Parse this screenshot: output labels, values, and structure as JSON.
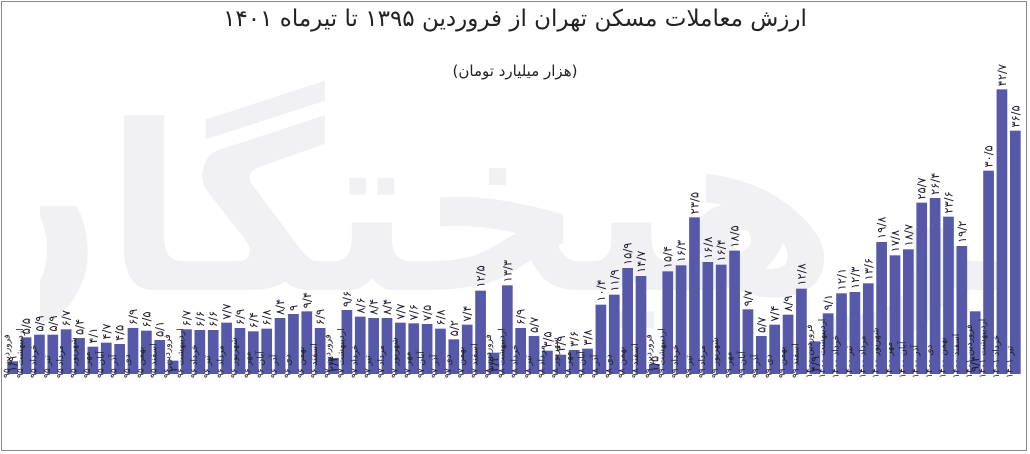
{
  "chart_data": {
    "type": "bar",
    "title": "ارزش معاملات مسکن تهران از فروردین ۱۳۹۵ تا تیرماه ۱۴۰۱",
    "subtitle": "(هزار میلیارد تومان)",
    "xlabel": "",
    "ylabel": "",
    "ylim": [
      0,
      45
    ],
    "grid": false,
    "legend": "none",
    "bar_color": "#5559a8",
    "categories": [
      "فروردین ۹۵",
      "اردیبهشت ۹۵",
      "خرداد ۹۵",
      "تیر ۹۵",
      "مرداد ۹۵",
      "شهریور ۹۵",
      "مهر ۹۵",
      "آبان ۹۵",
      "آذر ۹۵",
      "دی ۹۵",
      "بهمن ۹۵",
      "اسفند ۹۵",
      "فروردین ۹۶",
      "اردیبهشت ۹۶",
      "خرداد ۹۶",
      "تیر ۹۶",
      "مرداد ۹۶",
      "شهریور ۹۶",
      "مهر ۹۶",
      "آبان ۹۶",
      "آذر ۹۶",
      "دی ۹۶",
      "بهمن ۹۶",
      "اسفند ۹۶",
      "فروردین ۹۷",
      "اردیبهشت ۹۷",
      "خرداد ۹۷",
      "تیر ۹۷",
      "مرداد ۹۷",
      "شهریور ۹۷",
      "مهر ۹۷",
      "آبان ۹۷",
      "آذر ۹۷",
      "دی ۹۷",
      "بهمن ۹۷",
      "اسفند ۹۷",
      "فروردین ۹۸",
      "اردیبهشت ۹۸",
      "خرداد ۹۸",
      "تیر ۹۸",
      "مرداد ۹۸",
      "شهریور ۹۸",
      "مهر ۹۸",
      "آبان ۹۸",
      "آذر ۹۸",
      "دی ۹۸",
      "بهمن ۹۸",
      "اسفند ۹۸",
      "فروردین ۹۹",
      "اردیبهشت ۹۹",
      "خرداد ۹۹",
      "تیر ۹۹",
      "مرداد ۹۹",
      "شهریور ۹۹",
      "مهر ۹۹",
      "آبان ۹۹",
      "آذر ۹۹",
      "دی ۹۹",
      "بهمن ۹۹",
      "اسفند ۹۹",
      "فروردین ۱۴۰۰",
      "اردیبهشت ۱۴۰۰",
      "خرداد ۱۴۰۰",
      "تیر ۱۴۰۰",
      "مرداد ۱۴۰۰",
      "شهریور ۱۴۰۰",
      "مهر ۱۴۰۰",
      "آبان ۱۴۰۰",
      "آذر ۱۴۰۰",
      "دی ۱۴۰۰",
      "بهمن ۱۴۰۰",
      "اسفند ۱۴۰۰",
      "فروردین ۱۴۰۱",
      "اردیبهشت ۱۴۰۱",
      "خرداد ۱۴۰۱",
      "تیر ۱۴۰۱"
    ],
    "values": [
      1.9,
      5.5,
      5.9,
      5.9,
      6.7,
      5.4,
      4.1,
      4.7,
      4.5,
      6.9,
      6.5,
      5.1,
      2,
      6.7,
      6.6,
      6.6,
      7.7,
      6.9,
      6.4,
      6.8,
      8.4,
      9.0,
      9.4,
      6.9,
      2.4,
      9.6,
      8.6,
      8.4,
      8.4,
      7.7,
      7.6,
      7.5,
      6.8,
      5.2,
      7.4,
      12.5,
      3.2,
      13.3,
      6.9,
      5.7,
      3.5,
      2.9,
      3.6,
      3.8,
      10.4,
      11.9,
      15.9,
      14.7,
      1.5,
      15.4,
      16.3,
      23.5,
      16.8,
      16.4,
      18.5,
      9.7,
      5.7,
      7.4,
      8.9,
      12.8,
      4.9,
      9.1,
      12.1,
      12.3,
      13.6,
      19.8,
      17.8,
      18.7,
      25.7,
      26.4,
      23.6,
      19.2,
      9.4,
      30.5,
      42.7,
      36.5
    ],
    "value_labels": [
      "۱/۹",
      "۵/۵",
      "۵/۹",
      "۵/۹",
      "۶/۷",
      "۵/۴",
      "۴/۱",
      "۴/۷",
      "۴/۵",
      "۶/۹",
      "۶/۵",
      "۵/۱",
      "۲",
      "۶/۷",
      "۶/۶",
      "۶/۶",
      "۷/۷",
      "۶/۹",
      "۶/۴",
      "۶/۸",
      "۸/۴",
      "۹",
      "۹/۴",
      "۶/۹",
      "۲/۴",
      "۹/۶",
      "۸/۶",
      "۸/۴",
      "۸/۴",
      "۷/۷",
      "۷/۶",
      "۷/۵",
      "۶/۸",
      "۵/۲",
      "۷/۴",
      "۱۲/۵",
      "۳/۲",
      "۱۳/۳",
      "۶/۹",
      "۵/۷",
      "۳/۵",
      "۲/۹",
      "۳/۶",
      "۳/۸",
      "۱۰/۴",
      "۱۱/۹",
      "۱۵/۹",
      "۱۴/۷",
      "۱/۵",
      "۱۵/۴",
      "۱۶/۳",
      "۲۳/۵",
      "۱۶/۸",
      "۱۶/۴",
      "۱۸/۵",
      "۹/۷",
      "۵/۷",
      "۷/۴",
      "۸/۹",
      "۱۲/۸",
      "۴/۹",
      "۹/۱",
      "۱۲/۱",
      "۱۲/۳",
      "۱۳/۶",
      "۱۹/۸",
      "۱۷/۸",
      "۱۸/۷",
      "۲۵/۷",
      "۲۶/۴",
      "۲۳/۶",
      "۱۹/۲",
      "۹/۴",
      "۳۰/۵",
      "۴۲/۷",
      "۳۶/۵"
    ],
    "label_below_indices": [
      0,
      12,
      24,
      36,
      48,
      60,
      72
    ]
  },
  "watermark": {
    "text": "فرهیختگان"
  }
}
